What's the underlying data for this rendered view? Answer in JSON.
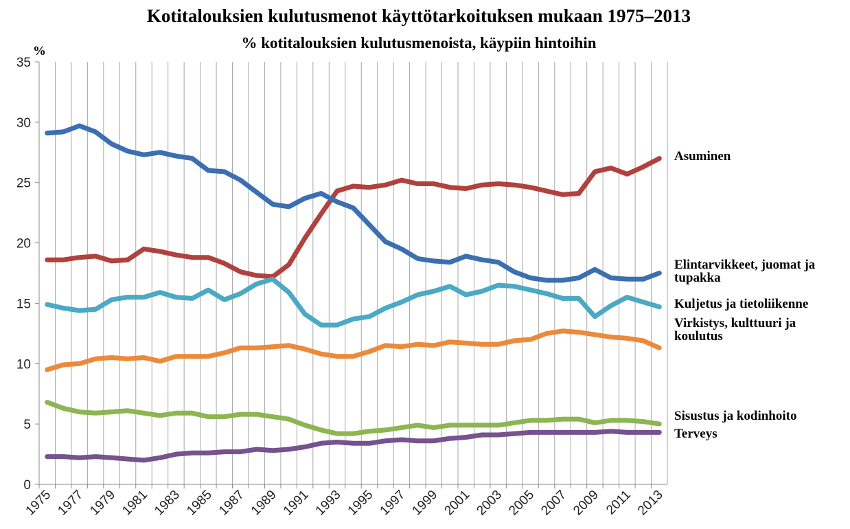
{
  "chart_data": {
    "type": "line",
    "title": "Kotitalouksien kulutusmenot käyttötarkoituksen mukaan 1975–2013",
    "subtitle": "% kotitalouksien kulutusmenoista, käypiin hintoihin",
    "y_label": "%",
    "categories": [
      "1975",
      null,
      "1977",
      null,
      "1979",
      null,
      "1981",
      null,
      "1983",
      null,
      "1985",
      null,
      "1987",
      null,
      "1989",
      null,
      "1991",
      null,
      "1993",
      null,
      "1995",
      null,
      "1997",
      null,
      "1999",
      null,
      "2001",
      null,
      "2003",
      null,
      "2005",
      null,
      "2007",
      null,
      "2009",
      null,
      "2011",
      null,
      "2013"
    ],
    "ylim": [
      0,
      35
    ],
    "yticks": [
      0,
      5,
      10,
      15,
      20,
      25,
      30,
      35
    ],
    "grid": "x",
    "series": [
      {
        "name": "Asuminen",
        "color": "#b0413e",
        "values": [
          18.6,
          18.6,
          18.8,
          18.9,
          18.5,
          18.6,
          19.5,
          19.3,
          19.0,
          18.8,
          18.8,
          18.3,
          17.6,
          17.3,
          17.2,
          18.2,
          20.4,
          22.4,
          24.3,
          24.7,
          24.6,
          24.8,
          25.2,
          24.9,
          24.9,
          24.6,
          24.5,
          24.8,
          24.9,
          24.8,
          24.6,
          24.3,
          24.0,
          24.1,
          25.9,
          26.2,
          25.7,
          26.3,
          27.0
        ]
      },
      {
        "name": "Elintarvikkeet, juomat ja tupakka",
        "color": "#3b6fb0",
        "values": [
          29.1,
          29.2,
          29.7,
          29.2,
          28.2,
          27.6,
          27.3,
          27.5,
          27.2,
          27.0,
          26.0,
          25.9,
          25.2,
          24.2,
          23.2,
          23.0,
          23.7,
          24.1,
          23.4,
          22.9,
          21.5,
          20.1,
          19.5,
          18.7,
          18.5,
          18.4,
          18.9,
          18.6,
          18.4,
          17.6,
          17.1,
          16.9,
          16.9,
          17.1,
          17.8,
          17.1,
          17.0,
          17.0,
          17.5
        ]
      },
      {
        "name": "Kuljetus ja tietoliikenne",
        "color": "#4aa9c3",
        "values": [
          14.9,
          14.6,
          14.4,
          14.5,
          15.3,
          15.5,
          15.5,
          15.9,
          15.5,
          15.4,
          16.1,
          15.3,
          15.8,
          16.6,
          17.0,
          15.9,
          14.1,
          13.2,
          13.2,
          13.7,
          13.9,
          14.6,
          15.1,
          15.7,
          16.0,
          16.4,
          15.7,
          16.0,
          16.5,
          16.4,
          16.1,
          15.8,
          15.4,
          15.4,
          13.9,
          14.8,
          15.5,
          15.1,
          14.7
        ]
      },
      {
        "name": "Virkistys, kulttuuri ja koulutus",
        "color": "#ec8a3b",
        "values": [
          9.5,
          9.9,
          10.0,
          10.4,
          10.5,
          10.4,
          10.5,
          10.2,
          10.6,
          10.6,
          10.6,
          10.9,
          11.3,
          11.3,
          11.4,
          11.5,
          11.2,
          10.8,
          10.6,
          10.6,
          11.0,
          11.5,
          11.4,
          11.6,
          11.5,
          11.8,
          11.7,
          11.6,
          11.6,
          11.9,
          12.0,
          12.5,
          12.7,
          12.6,
          12.4,
          12.2,
          12.1,
          11.9,
          11.3
        ]
      },
      {
        "name": "Sisustus ja kodinhoito",
        "color": "#8db552",
        "values": [
          6.8,
          6.3,
          6.0,
          5.9,
          6.0,
          6.1,
          5.9,
          5.7,
          5.9,
          5.9,
          5.6,
          5.6,
          5.8,
          5.8,
          5.6,
          5.4,
          4.9,
          4.5,
          4.2,
          4.2,
          4.4,
          4.5,
          4.7,
          4.9,
          4.7,
          4.9,
          4.9,
          4.9,
          4.9,
          5.1,
          5.3,
          5.3,
          5.4,
          5.4,
          5.1,
          5.3,
          5.3,
          5.2,
          5.0
        ]
      },
      {
        "name": "Terveys",
        "color": "#76528f",
        "values": [
          2.3,
          2.3,
          2.2,
          2.3,
          2.2,
          2.1,
          2.0,
          2.2,
          2.5,
          2.6,
          2.6,
          2.7,
          2.7,
          2.9,
          2.8,
          2.9,
          3.1,
          3.4,
          3.5,
          3.4,
          3.4,
          3.6,
          3.7,
          3.6,
          3.6,
          3.8,
          3.9,
          4.1,
          4.1,
          4.2,
          4.3,
          4.3,
          4.3,
          4.3,
          4.3,
          4.4,
          4.3,
          4.3,
          4.3
        ]
      }
    ]
  }
}
